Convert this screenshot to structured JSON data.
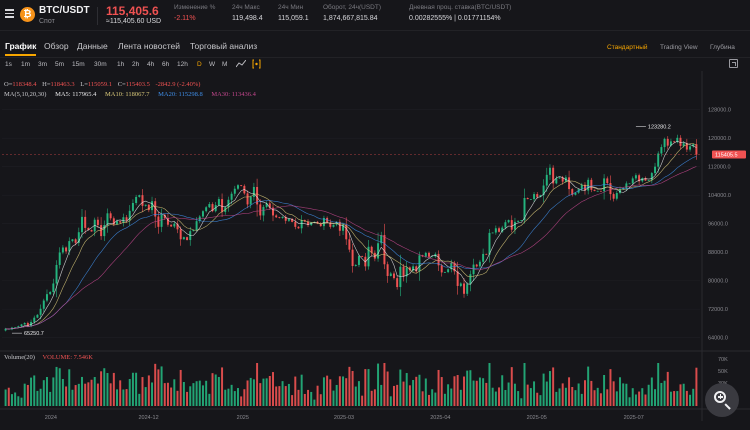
{
  "header": {
    "pair": "BTC/USDT",
    "market": "Спот",
    "coin_letter": "₿",
    "price": "115,405.6",
    "price_usd": "≈115,405.60 USD",
    "stats": [
      {
        "label": "Изменение %",
        "value": "-2.11%",
        "negative": true
      },
      {
        "label": "24ч Макс",
        "value": "119,498.4",
        "negative": false
      },
      {
        "label": "24ч Мин",
        "value": "115,059.1",
        "negative": false
      },
      {
        "label": "Оборот, 24ч(USDT)",
        "value": "1,874,667,815.84",
        "negative": false
      },
      {
        "label": "Дневная проц. ставка(BTC/USDT)",
        "value": "0.00282555% | 0.01771154%",
        "negative": false
      }
    ]
  },
  "tabs": [
    "График",
    "Обзор",
    "Данные",
    "Лента новостей",
    "Торговый анализ"
  ],
  "views": [
    "Стандартный",
    "Trading View",
    "Глубина"
  ],
  "timeframes": [
    "1s",
    "1m",
    "3m",
    "5m",
    "15m",
    "30m",
    "1h",
    "2h",
    "4h",
    "6h",
    "12h",
    "D",
    "W",
    "M"
  ],
  "active_timeframe": "D",
  "ohlc": {
    "o_label": "O=",
    "o": "118348.4",
    "h_label": "H=",
    "h": "118463.3",
    "l_label": "L=",
    "l": "115059.1",
    "c_label": "C=",
    "c": "115403.5",
    "change": "-2842.9 (-2.40%)"
  },
  "ma": {
    "label": "MA(5,10,20,30)",
    "ma5": "MA5: 117965.4",
    "ma10": "MA10: 118067.7",
    "ma20": "MA20: 115298.8",
    "ma30": "MA30: 113436.4"
  },
  "volume": {
    "label": "Volume(20)",
    "value": "VOLUME: 7.546K"
  },
  "colors": {
    "up": "#24b47e",
    "down": "#f05252",
    "accent": "#f7a600",
    "ma5": "#e8e8ea",
    "ma10": "#d9c97a",
    "ma20": "#3f8ee8",
    "ma30": "#c2478c"
  },
  "icons": {
    "menu": "menu-icon",
    "coin": "bitcoin-icon",
    "indicator": "indicator-icon",
    "expand": "expand-icon",
    "zoom": "zoom-in-icon"
  },
  "chart_data": {
    "type": "candlestick",
    "y_ticks": [
      "128000.0",
      "120000.0",
      "112000.0",
      "104000.0",
      "96000.0",
      "88000.0",
      "80000.0",
      "72000.0",
      "64000.0"
    ],
    "ylim": [
      60800,
      131000
    ],
    "x_ticks": [
      "2024",
      "2024-12",
      "2025",
      "2025-03",
      "2025-04",
      "2025-05",
      "2025-07"
    ],
    "volume_ticks": [
      "70K",
      "50K",
      "30K",
      "10K"
    ],
    "current_price_label": "115405.5",
    "current_price": 115405.5,
    "max_label": "123280.2",
    "max_value": 123280.2,
    "min_label": "65250.7",
    "min_value": 65250.7,
    "closes": [
      66500,
      66300,
      66800,
      66900,
      67200,
      67700,
      68100,
      67200,
      68400,
      69600,
      70400,
      72100,
      74400,
      76200,
      76800,
      79200,
      84400,
      87900,
      89300,
      88200,
      91100,
      91600,
      90600,
      93600,
      97900,
      94800,
      94200,
      93800,
      97100,
      95600,
      92500,
      95600,
      98900,
      97500,
      95800,
      96700,
      96300,
      97800,
      96900,
      99600,
      101800,
      103500,
      104000,
      101000,
      101300,
      99800,
      102300,
      98000,
      95100,
      98500,
      97600,
      95700,
      95200,
      96000,
      94400,
      91600,
      92200,
      91400,
      93900,
      94200,
      96700,
      98000,
      99500,
      100600,
      101500,
      99500,
      101200,
      102900,
      99300,
      100600,
      102700,
      104400,
      105800,
      106800,
      106600,
      104500,
      101400,
      103500,
      106300,
      101400,
      98300,
      100700,
      101700,
      100500,
      98300,
      97800,
      97600,
      97900,
      96800,
      97300,
      96500,
      95100,
      94700,
      97000,
      96600,
      95600,
      96300,
      96500,
      96000,
      95300,
      97600,
      96300,
      95100,
      95700,
      96500,
      94000,
      95700,
      91600,
      88700,
      84100,
      84400,
      86900,
      86700,
      84000,
      89500,
      87800,
      86200,
      90500,
      92800,
      84600,
      81300,
      82000,
      80700,
      78200,
      83900,
      81200,
      83700,
      82900,
      84000,
      82600,
      87100,
      86800,
      87800,
      86700,
      86800,
      87500,
      84300,
      82300,
      82400,
      83200,
      85000,
      82600,
      78500,
      79200,
      76300,
      79000,
      81800,
      84500,
      84000,
      85300,
      87500,
      87300,
      93400,
      93500,
      94700,
      93700,
      94900,
      96400,
      97000,
      94300,
      96500,
      96800,
      97000,
      103200,
      102900,
      102900,
      104300,
      103500,
      104000,
      106700,
      109700,
      111700,
      107300,
      108700,
      109000,
      107800,
      109000,
      105700,
      104100,
      104700,
      105700,
      106900,
      105300,
      108300,
      105500,
      105200,
      105200,
      105100,
      108700,
      107400,
      104300,
      103000,
      104600,
      105700,
      106000,
      107300,
      107300,
      108700,
      109600,
      107900,
      108800,
      108100,
      108200,
      110200,
      112000,
      115700,
      117500,
      119800,
      117900,
      119100,
      118900,
      120100,
      117800,
      118600,
      116800,
      117700,
      118300,
      115400
    ]
  }
}
